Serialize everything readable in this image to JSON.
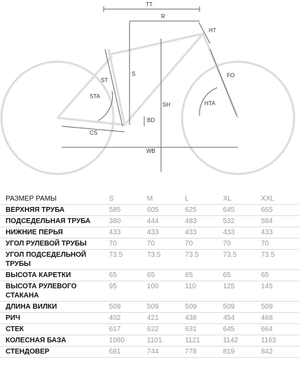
{
  "diagram": {
    "labels": {
      "tt": "TT",
      "r": "R",
      "ht": "HT",
      "s": "S",
      "st": "ST",
      "sta": "STA",
      "fo": "FO",
      "sh": "SH",
      "hta": "HTA",
      "bd": "BD",
      "cs": "CS",
      "wb": "WB"
    }
  },
  "table": {
    "header": [
      "РАЗМЕР РАМЫ",
      "S",
      "M",
      "L",
      "XL",
      "XXL"
    ],
    "rows": [
      [
        "ВЕРХНЯЯ ТРУБА",
        585,
        605,
        625,
        645,
        665
      ],
      [
        "ПОДСЕДЕЛЬНАЯ ТРУБА",
        380,
        444,
        483,
        532,
        584
      ],
      [
        "НИЖНИЕ ПЕРЬЯ",
        433,
        433,
        433,
        433,
        433
      ],
      [
        "УГОЛ РУЛЕВОЙ ТРУБЫ",
        70,
        70,
        70,
        70,
        70
      ],
      [
        "УГОЛ ПОДСЕДЕЛЬНОЙ ТРУБЫ",
        73.5,
        73.5,
        73.5,
        73.5,
        73.5
      ],
      [
        "ВЫСОТА КАРЕТКИ",
        65,
        65,
        65,
        65,
        65
      ],
      [
        "ВЫСОТА РУЛЕВОГО СТАКАНА",
        95,
        100,
        110,
        125,
        145
      ],
      [
        "ДЛИНА ВИЛКИ",
        509,
        509,
        509,
        509,
        509
      ],
      [
        "РИЧ",
        402,
        421,
        438,
        454,
        468
      ],
      [
        "СТЕК",
        617,
        622,
        631,
        645,
        664
      ],
      [
        "КОЛЕСНАЯ БАЗА",
        1080,
        1101,
        1121,
        1142,
        1163
      ],
      [
        "СТЕНДОВЕР",
        681,
        744,
        778,
        819,
        842
      ]
    ]
  }
}
